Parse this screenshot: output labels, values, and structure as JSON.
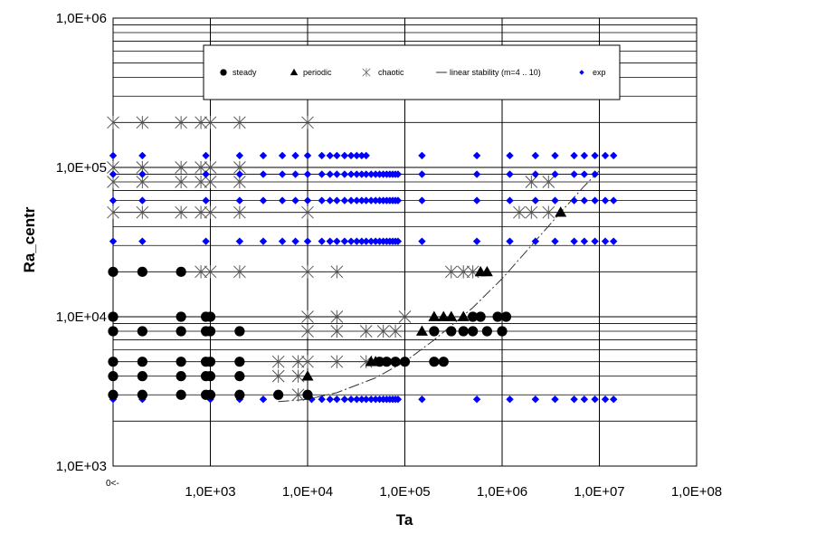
{
  "chart_data": {
    "type": "scatter",
    "x_scale": "log",
    "y_scale": "log",
    "xlabel": "Ta",
    "ylabel": "Ra_centr",
    "xlim": [
      100,
      100000000
    ],
    "ylim": [
      1000,
      1000000
    ],
    "x_tick_labels": [
      "1,0E+03",
      "1,0E+04",
      "1,0E+05",
      "1,0E+06",
      "1,0E+07",
      "1,0E+08"
    ],
    "y_tick_labels": [
      "1,0E+03",
      "1,0E+04",
      "1,0E+05",
      "1,0E+06"
    ],
    "zero_note": "0<-",
    "grid": true,
    "legend_position": "top",
    "series": [
      {
        "name": "steady",
        "marker": "circle",
        "color": "#000000",
        "points": [
          [
            100,
            3000
          ],
          [
            100,
            4000
          ],
          [
            100,
            5000
          ],
          [
            100,
            8000
          ],
          [
            100,
            10000
          ],
          [
            100,
            20000
          ],
          [
            200,
            3000
          ],
          [
            200,
            4000
          ],
          [
            200,
            5000
          ],
          [
            200,
            8000
          ],
          [
            200,
            20000
          ],
          [
            500,
            3000
          ],
          [
            500,
            4000
          ],
          [
            500,
            5000
          ],
          [
            500,
            8000
          ],
          [
            500,
            10000
          ],
          [
            500,
            20000
          ],
          [
            900,
            3000
          ],
          [
            900,
            4000
          ],
          [
            900,
            5000
          ],
          [
            900,
            8000
          ],
          [
            900,
            10000
          ],
          [
            1000,
            3000
          ],
          [
            1000,
            4000
          ],
          [
            1000,
            5000
          ],
          [
            1000,
            8000
          ],
          [
            1000,
            10000
          ],
          [
            2000,
            3000
          ],
          [
            2000,
            4000
          ],
          [
            2000,
            5000
          ],
          [
            2000,
            8000
          ],
          [
            5000,
            3000
          ],
          [
            10000,
            3000
          ],
          [
            55000,
            5000
          ],
          [
            65000,
            5000
          ],
          [
            80000,
            5000
          ],
          [
            100000,
            5000
          ],
          [
            200000,
            5000
          ],
          [
            250000,
            5000
          ],
          [
            200000,
            8000
          ],
          [
            300000,
            8000
          ],
          [
            400000,
            8000
          ],
          [
            500000,
            8000
          ],
          [
            700000,
            8000
          ],
          [
            1000000,
            8000
          ],
          [
            500000,
            10000
          ],
          [
            600000,
            10000
          ],
          [
            900000,
            10000
          ],
          [
            1100000,
            10000
          ]
        ]
      },
      {
        "name": "periodic",
        "marker": "triangle",
        "color": "#000000",
        "points": [
          [
            10000,
            4000
          ],
          [
            45000,
            5000
          ],
          [
            50000,
            5000
          ],
          [
            150000,
            8000
          ],
          [
            200000,
            10000
          ],
          [
            250000,
            10000
          ],
          [
            300000,
            10000
          ],
          [
            400000,
            10000
          ],
          [
            600000,
            20000
          ],
          [
            700000,
            20000
          ],
          [
            4000000,
            50000
          ]
        ]
      },
      {
        "name": "chaotic",
        "marker": "asterisk",
        "color": "#555555",
        "points": [
          [
            100,
            50000
          ],
          [
            100,
            80000
          ],
          [
            100,
            100000
          ],
          [
            100,
            200000
          ],
          [
            200,
            50000
          ],
          [
            200,
            80000
          ],
          [
            200,
            100000
          ],
          [
            200,
            200000
          ],
          [
            500,
            50000
          ],
          [
            500,
            80000
          ],
          [
            500,
            100000
          ],
          [
            500,
            200000
          ],
          [
            800,
            20000
          ],
          [
            800,
            50000
          ],
          [
            800,
            80000
          ],
          [
            800,
            100000
          ],
          [
            800,
            200000
          ],
          [
            1000,
            20000
          ],
          [
            1000,
            50000
          ],
          [
            1000,
            80000
          ],
          [
            1000,
            100000
          ],
          [
            1000,
            200000
          ],
          [
            2000,
            20000
          ],
          [
            2000,
            50000
          ],
          [
            2000,
            80000
          ],
          [
            2000,
            100000
          ],
          [
            2000,
            200000
          ],
          [
            5000,
            4000
          ],
          [
            5000,
            5000
          ],
          [
            8000,
            3000
          ],
          [
            8000,
            4000
          ],
          [
            8000,
            5000
          ],
          [
            10000,
            5000
          ],
          [
            10000,
            8000
          ],
          [
            10000,
            10000
          ],
          [
            10000,
            20000
          ],
          [
            10000,
            50000
          ],
          [
            10000,
            200000
          ],
          [
            20000,
            5000
          ],
          [
            20000,
            8000
          ],
          [
            20000,
            10000
          ],
          [
            20000,
            20000
          ],
          [
            40000,
            5000
          ],
          [
            40000,
            8000
          ],
          [
            60000,
            8000
          ],
          [
            80000,
            8000
          ],
          [
            100000,
            10000
          ],
          [
            300000,
            20000
          ],
          [
            400000,
            20000
          ],
          [
            500000,
            20000
          ],
          [
            1500000,
            50000
          ],
          [
            2000000,
            50000
          ],
          [
            2000000,
            80000
          ],
          [
            3000000,
            50000
          ],
          [
            3000000,
            80000
          ]
        ]
      },
      {
        "name": "exp",
        "marker": "diamond",
        "color": "#0000ff",
        "points": [
          [
            100,
            2800
          ],
          [
            200,
            2800
          ],
          [
            1000,
            2800
          ],
          [
            2000,
            2800
          ],
          [
            3500,
            2800
          ],
          [
            11000,
            2800
          ],
          [
            14000,
            2800
          ],
          [
            17000,
            2800
          ],
          [
            20000,
            2800
          ],
          [
            24000,
            2800
          ],
          [
            28000,
            2800
          ],
          [
            32000,
            2800
          ],
          [
            36000,
            2800
          ],
          [
            40000,
            2800
          ],
          [
            45000,
            2800
          ],
          [
            50000,
            2800
          ],
          [
            55000,
            2800
          ],
          [
            60000,
            2800
          ],
          [
            65000,
            2800
          ],
          [
            70000,
            2800
          ],
          [
            75000,
            2800
          ],
          [
            80000,
            2800
          ],
          [
            85000,
            2800
          ],
          [
            150000,
            2800
          ],
          [
            550000,
            2800
          ],
          [
            1200000,
            2800
          ],
          [
            2200000,
            2800
          ],
          [
            3500000,
            2800
          ],
          [
            5500000,
            2800
          ],
          [
            7000000,
            2800
          ],
          [
            9000000,
            2800
          ],
          [
            11500000,
            2800
          ],
          [
            14000000,
            2800
          ],
          [
            100,
            32000
          ],
          [
            200,
            32000
          ],
          [
            900,
            32000
          ],
          [
            2000,
            32000
          ],
          [
            3500,
            32000
          ],
          [
            5500,
            32000
          ],
          [
            7500,
            32000
          ],
          [
            10000,
            32000
          ],
          [
            14000,
            32000
          ],
          [
            17000,
            32000
          ],
          [
            20000,
            32000
          ],
          [
            24000,
            32000
          ],
          [
            28000,
            32000
          ],
          [
            32000,
            32000
          ],
          [
            36000,
            32000
          ],
          [
            40000,
            32000
          ],
          [
            45000,
            32000
          ],
          [
            50000,
            32000
          ],
          [
            55000,
            32000
          ],
          [
            60000,
            32000
          ],
          [
            65000,
            32000
          ],
          [
            70000,
            32000
          ],
          [
            75000,
            32000
          ],
          [
            80000,
            32000
          ],
          [
            85000,
            32000
          ],
          [
            150000,
            32000
          ],
          [
            550000,
            32000
          ],
          [
            1200000,
            32000
          ],
          [
            2200000,
            32000
          ],
          [
            3500000,
            32000
          ],
          [
            5500000,
            32000
          ],
          [
            7000000,
            32000
          ],
          [
            9000000,
            32000
          ],
          [
            11500000,
            32000
          ],
          [
            14000000,
            32000
          ],
          [
            100,
            60000
          ],
          [
            200,
            60000
          ],
          [
            900,
            60000
          ],
          [
            2000,
            60000
          ],
          [
            3500,
            60000
          ],
          [
            5500,
            60000
          ],
          [
            7500,
            60000
          ],
          [
            10000,
            60000
          ],
          [
            14000,
            60000
          ],
          [
            17000,
            60000
          ],
          [
            20000,
            60000
          ],
          [
            24000,
            60000
          ],
          [
            28000,
            60000
          ],
          [
            32000,
            60000
          ],
          [
            36000,
            60000
          ],
          [
            40000,
            60000
          ],
          [
            45000,
            60000
          ],
          [
            50000,
            60000
          ],
          [
            55000,
            60000
          ],
          [
            60000,
            60000
          ],
          [
            65000,
            60000
          ],
          [
            70000,
            60000
          ],
          [
            75000,
            60000
          ],
          [
            80000,
            60000
          ],
          [
            85000,
            60000
          ],
          [
            150000,
            60000
          ],
          [
            550000,
            60000
          ],
          [
            1200000,
            60000
          ],
          [
            2200000,
            60000
          ],
          [
            3500000,
            60000
          ],
          [
            5500000,
            60000
          ],
          [
            7000000,
            60000
          ],
          [
            9000000,
            60000
          ],
          [
            11500000,
            60000
          ],
          [
            14000000,
            60000
          ],
          [
            100,
            90000
          ],
          [
            200,
            90000
          ],
          [
            900,
            90000
          ],
          [
            2000,
            90000
          ],
          [
            3500,
            90000
          ],
          [
            5500,
            90000
          ],
          [
            7500,
            90000
          ],
          [
            10000,
            90000
          ],
          [
            14000,
            90000
          ],
          [
            17000,
            90000
          ],
          [
            20000,
            90000
          ],
          [
            24000,
            90000
          ],
          [
            28000,
            90000
          ],
          [
            32000,
            90000
          ],
          [
            36000,
            90000
          ],
          [
            40000,
            90000
          ],
          [
            45000,
            90000
          ],
          [
            50000,
            90000
          ],
          [
            55000,
            90000
          ],
          [
            60000,
            90000
          ],
          [
            65000,
            90000
          ],
          [
            70000,
            90000
          ],
          [
            75000,
            90000
          ],
          [
            80000,
            90000
          ],
          [
            85000,
            90000
          ],
          [
            150000,
            90000
          ],
          [
            550000,
            90000
          ],
          [
            1200000,
            90000
          ],
          [
            2200000,
            90000
          ],
          [
            3500000,
            90000
          ],
          [
            5500000,
            90000
          ],
          [
            7000000,
            90000
          ],
          [
            9000000,
            90000
          ],
          [
            100,
            120000
          ],
          [
            200,
            120000
          ],
          [
            900,
            120000
          ],
          [
            2000,
            120000
          ],
          [
            3500,
            120000
          ],
          [
            5500,
            120000
          ],
          [
            7500,
            120000
          ],
          [
            10000,
            120000
          ],
          [
            14000,
            120000
          ],
          [
            17000,
            120000
          ],
          [
            20000,
            120000
          ],
          [
            24000,
            120000
          ],
          [
            28000,
            120000
          ],
          [
            32000,
            120000
          ],
          [
            36000,
            120000
          ],
          [
            40000,
            120000
          ],
          [
            150000,
            120000
          ],
          [
            550000,
            120000
          ],
          [
            1200000,
            120000
          ],
          [
            2200000,
            120000
          ],
          [
            3500000,
            120000
          ],
          [
            5500000,
            120000
          ],
          [
            7000000,
            120000
          ],
          [
            9000000,
            120000
          ],
          [
            11500000,
            120000
          ],
          [
            14000000,
            120000
          ]
        ]
      },
      {
        "name": "linear stability (m=4 .. 10)",
        "marker": "line",
        "color": "#333333",
        "points": [
          [
            5000,
            2700
          ],
          [
            10000,
            2800
          ],
          [
            20000,
            3100
          ],
          [
            50000,
            3900
          ],
          [
            100000,
            5000
          ],
          [
            200000,
            7000
          ],
          [
            500000,
            11500
          ],
          [
            1000000,
            18000
          ],
          [
            2000000,
            30000
          ],
          [
            4000000,
            50000
          ],
          [
            7000000,
            75000
          ],
          [
            10000000,
            95000
          ]
        ]
      }
    ]
  }
}
